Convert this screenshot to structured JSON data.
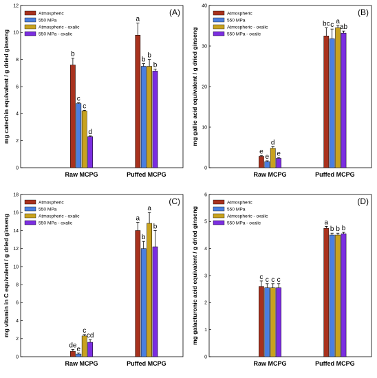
{
  "colors": {
    "atmospheric": "#a8321e",
    "mpa550": "#4a7fe0",
    "atm_oxalic": "#c8a21e",
    "mpa550_oxalic": "#7b2ee0"
  },
  "chart_data": [
    {
      "type": "bar",
      "panel_label": "(A)",
      "ylabel": "mg catechin equivalent / g dried ginseng",
      "ylim": [
        0,
        12
      ],
      "yticks": [
        0,
        2,
        4,
        6,
        8,
        10,
        12
      ],
      "categories": [
        "Raw MCPG",
        "Puffed MCPG"
      ],
      "legend_position": "top-left",
      "series": [
        {
          "name": "Atmospheric",
          "color_key": "atmospheric",
          "values": [
            7.6,
            9.8
          ],
          "errors": [
            0.5,
            0.9
          ],
          "letters": [
            "b",
            "a"
          ]
        },
        {
          "name": "550 MPa",
          "color_key": "mpa550",
          "values": [
            4.75,
            7.5
          ],
          "errors": [
            0.05,
            0.2
          ],
          "letters": [
            "c",
            "b"
          ]
        },
        {
          "name": "Atmospheric - oxalic",
          "color_key": "atm_oxalic",
          "values": [
            4.2,
            7.5
          ],
          "errors": [
            0.05,
            0.5
          ],
          "letters": [
            "c",
            "b"
          ]
        },
        {
          "name": "550 MPa - oxalic",
          "color_key": "mpa550_oxalic",
          "values": [
            2.3,
            7.15
          ],
          "errors": [
            0.05,
            0.15
          ],
          "letters": [
            "d",
            "b"
          ]
        }
      ]
    },
    {
      "type": "bar",
      "panel_label": "(B)",
      "ylabel": "mg gallic acid equivalent / g dried ginseng",
      "ylim": [
        0,
        40
      ],
      "yticks": [
        0,
        10,
        20,
        30,
        40
      ],
      "categories": [
        "Raw MCPG",
        "Puffed MCPG"
      ],
      "legend_position": "top-left",
      "series": [
        {
          "name": "Atmospheric",
          "color_key": "atmospheric",
          "values": [
            2.8,
            32.5
          ],
          "errors": [
            0.2,
            2.0
          ],
          "letters": [
            "e",
            "bc"
          ]
        },
        {
          "name": "550 MPa",
          "color_key": "mpa550",
          "values": [
            1.5,
            31.8
          ],
          "errors": [
            0.2,
            2.4
          ],
          "letters": [
            "e",
            "c"
          ]
        },
        {
          "name": "Atmospheric - oxalic",
          "color_key": "atm_oxalic",
          "values": [
            4.8,
            34.5
          ],
          "errors": [
            0.4,
            0.6
          ],
          "letters": [
            "d",
            "a"
          ]
        },
        {
          "name": "550 MPa - oxalic",
          "color_key": "mpa550_oxalic",
          "values": [
            2.3,
            33.2
          ],
          "errors": [
            0.2,
            0.5
          ],
          "letters": [
            "e",
            "ab"
          ]
        }
      ]
    },
    {
      "type": "bar",
      "panel_label": "(C)",
      "ylabel": "mg vitamin in C equivalent / g dried ginseng",
      "ylim": [
        0,
        18
      ],
      "yticks": [
        0,
        2,
        4,
        6,
        8,
        10,
        12,
        14,
        16,
        18
      ],
      "categories": [
        "Raw MCPG",
        "Puffed MCPG"
      ],
      "legend_position": "top-left",
      "series": [
        {
          "name": "Atmospheric",
          "color_key": "atmospheric",
          "values": [
            0.6,
            14.0
          ],
          "errors": [
            0.2,
            0.9
          ],
          "letters": [
            "de",
            "a"
          ]
        },
        {
          "name": "550 MPa",
          "color_key": "mpa550",
          "values": [
            0.3,
            12.0
          ],
          "errors": [
            0.1,
            0.8
          ],
          "letters": [
            "e",
            "b"
          ]
        },
        {
          "name": "Atmospheric - oxalic",
          "color_key": "atm_oxalic",
          "values": [
            2.3,
            14.8
          ],
          "errors": [
            0.15,
            1.2
          ],
          "letters": [
            "c",
            "a"
          ]
        },
        {
          "name": "550 MPa - oxalic",
          "color_key": "mpa550_oxalic",
          "values": [
            1.6,
            12.2
          ],
          "errors": [
            0.3,
            1.8
          ],
          "letters": [
            "cd",
            "b"
          ]
        }
      ]
    },
    {
      "type": "bar",
      "panel_label": "(D)",
      "ylabel": "mg galacturonic acid equivalent / g dried ginseng",
      "ylim": [
        0,
        6
      ],
      "yticks": [
        0,
        1,
        2,
        3,
        4,
        5,
        6
      ],
      "categories": [
        "Raw MCPG",
        "Puffed MCPG"
      ],
      "legend_position": "top-left",
      "series": [
        {
          "name": "Atmospheric",
          "color_key": "atmospheric",
          "values": [
            2.6,
            4.75
          ],
          "errors": [
            0.2,
            0.07
          ],
          "letters": [
            "c",
            "a"
          ]
        },
        {
          "name": "550 MPa",
          "color_key": "mpa550",
          "values": [
            2.55,
            4.5
          ],
          "errors": [
            0.15,
            0.07
          ],
          "letters": [
            "c",
            "b"
          ]
        },
        {
          "name": "Atmospheric - oxalic",
          "color_key": "atm_oxalic",
          "values": [
            2.55,
            4.5
          ],
          "errors": [
            0.15,
            0.07
          ],
          "letters": [
            "c",
            "b"
          ]
        },
        {
          "name": "550 MPa - oxalic",
          "color_key": "mpa550_oxalic",
          "values": [
            2.55,
            4.55
          ],
          "errors": [
            0.15,
            0.05
          ],
          "letters": [
            "c",
            "b"
          ]
        }
      ]
    }
  ]
}
